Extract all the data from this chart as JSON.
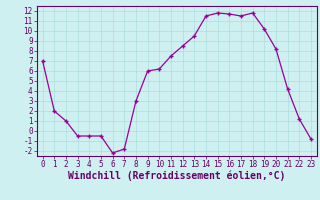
{
  "x": [
    0,
    1,
    2,
    3,
    4,
    5,
    6,
    7,
    8,
    9,
    10,
    11,
    12,
    13,
    14,
    15,
    16,
    17,
    18,
    19,
    20,
    21,
    22,
    23
  ],
  "y": [
    7,
    2,
    1,
    -0.5,
    -0.5,
    -0.5,
    -2.2,
    -1.8,
    3,
    6,
    6.2,
    7.5,
    8.5,
    9.5,
    11.5,
    11.8,
    11.7,
    11.5,
    11.8,
    10.2,
    8.2,
    4.2,
    1.2,
    -0.8
  ],
  "line_color": "#990099",
  "marker": "+",
  "marker_size": 3.5,
  "marker_linewidth": 1.0,
  "line_width": 0.9,
  "bg_color": "#cff0f0",
  "grid_color": "#aadddd",
  "xlabel": "Windchill (Refroidissement éolien,°C)",
  "xlim": [
    -0.5,
    23.5
  ],
  "ylim": [
    -2.5,
    12.5
  ],
  "yticks": [
    -2,
    -1,
    0,
    1,
    2,
    3,
    4,
    5,
    6,
    7,
    8,
    9,
    10,
    11,
    12
  ],
  "xticks": [
    0,
    1,
    2,
    3,
    4,
    5,
    6,
    7,
    8,
    9,
    10,
    11,
    12,
    13,
    14,
    15,
    16,
    17,
    18,
    19,
    20,
    21,
    22,
    23
  ],
  "tick_label_fontsize": 5.5,
  "xlabel_fontsize": 7.0,
  "axis_color": "#660066",
  "spine_color": "#660066"
}
